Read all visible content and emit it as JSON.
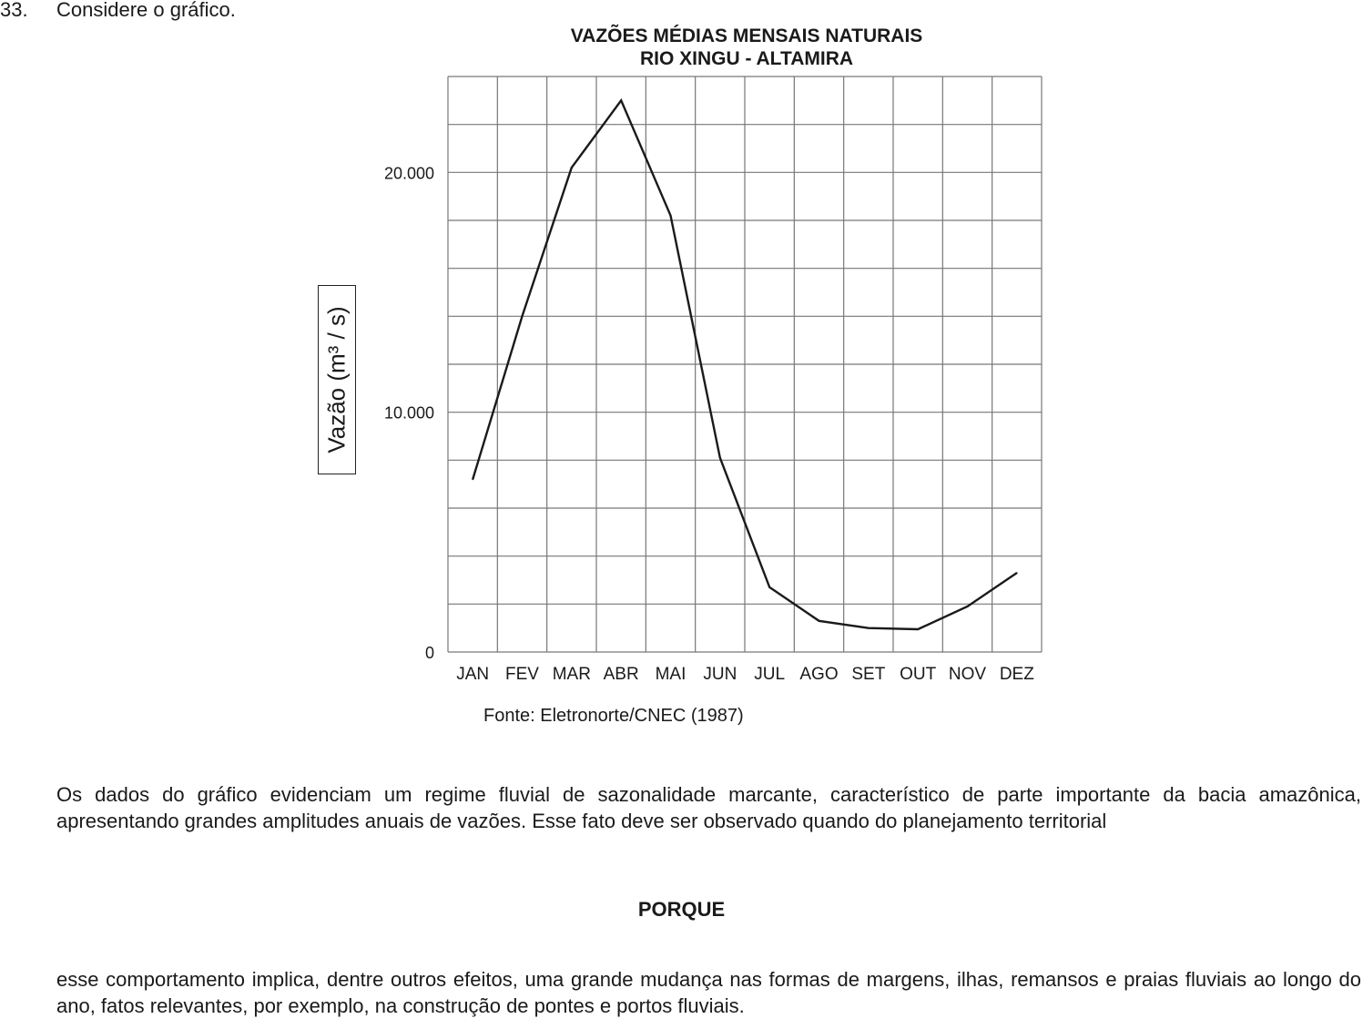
{
  "question": {
    "number": "33.",
    "intro": "Considere o gráfico."
  },
  "chart_data": {
    "type": "line",
    "title": "VAZÕES MÉDIAS MENSAIS NATURAIS",
    "subtitle": "RIO XINGU - ALTAMIRA",
    "ylabel": "Vazão (m³ / s)",
    "xlabel": "",
    "ylim": [
      0,
      24000
    ],
    "grid": true,
    "y_ticks": [
      {
        "value": 0,
        "label": "0"
      },
      {
        "value": 10000,
        "label": "10.000"
      },
      {
        "value": 20000,
        "label": "20.000"
      }
    ],
    "categories": [
      "JAN",
      "FEV",
      "MAR",
      "ABR",
      "MAI",
      "JUN",
      "JUL",
      "AGO",
      "SET",
      "OUT",
      "NOV",
      "DEZ"
    ],
    "values": [
      7200,
      14000,
      20200,
      23000,
      18200,
      8100,
      2700,
      1300,
      1000,
      950,
      1900,
      3300
    ],
    "source": "Fonte: Eletronorte/CNEC (1987)"
  },
  "body": {
    "paragraph1": "Os dados do gráfico evidenciam um regime fluvial de sazonalidade marcante, característico de parte importante da bacia amazônica, apresentando grandes amplitudes anuais de vazões. Esse fato deve ser observado quando do planejamento territorial",
    "porque": "PORQUE",
    "paragraph2": "esse comportamento implica, dentre outros efeitos, uma grande mudança nas formas de margens, ilhas, remansos e praias fluviais ao longo do ano, fatos relevantes, por exemplo, na construção de pontes e portos fluviais."
  }
}
